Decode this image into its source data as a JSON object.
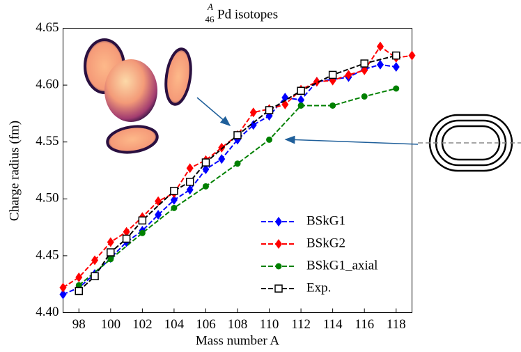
{
  "chart_data": {
    "type": "line",
    "title": "Pd isotopes",
    "title_superscript": "A",
    "title_subscript": "46",
    "xlabel": "Mass number A",
    "ylabel": "Charge radius (fm)",
    "xlim": [
      97,
      119
    ],
    "ylim": [
      4.4,
      4.65
    ],
    "xticks": [
      98,
      100,
      102,
      104,
      106,
      108,
      110,
      112,
      114,
      116,
      118
    ],
    "yticks": [
      {
        "value": 4.4,
        "label": "4.40"
      },
      4.45,
      {
        "value": 4.5,
        "label": "4.50"
      },
      4.55,
      {
        "value": 4.6,
        "label": "4.60"
      },
      4.65
    ],
    "series": [
      {
        "name": "BSkG1",
        "color": "#0000ff",
        "marker": "diamond",
        "x": [
          97,
          98,
          99,
          100,
          101,
          102,
          103,
          104,
          105,
          106,
          107,
          108,
          109,
          110,
          111,
          112,
          113,
          114,
          115,
          116,
          117,
          118
        ],
        "values": [
          4.416,
          4.422,
          4.434,
          4.448,
          4.462,
          4.472,
          4.486,
          4.499,
          4.508,
          4.526,
          4.535,
          4.552,
          4.565,
          4.573,
          4.589,
          4.587,
          4.603,
          4.605,
          4.607,
          4.614,
          4.618,
          4.616
        ]
      },
      {
        "name": "BSkG2",
        "color": "#ff0000",
        "marker": "diamond",
        "x": [
          97,
          98,
          99,
          100,
          101,
          102,
          103,
          104,
          105,
          106,
          107,
          108,
          109,
          110,
          111,
          112,
          113,
          114,
          115,
          116,
          117,
          118,
          119
        ],
        "values": [
          4.422,
          4.431,
          4.446,
          4.462,
          4.471,
          4.484,
          4.498,
          4.505,
          4.527,
          4.534,
          4.545,
          4.556,
          4.576,
          4.579,
          4.583,
          4.596,
          4.603,
          4.604,
          4.609,
          4.613,
          4.634,
          4.624,
          4.626
        ]
      },
      {
        "name": "BSkG1_axial",
        "color": "#008000",
        "marker": "circle",
        "x": [
          98,
          100,
          102,
          104,
          106,
          108,
          110,
          112,
          114,
          116,
          118
        ],
        "values": [
          4.424,
          4.447,
          4.47,
          4.492,
          4.511,
          4.531,
          4.552,
          4.582,
          4.582,
          4.59,
          4.597
        ]
      },
      {
        "name": "Exp.",
        "color": "#000000",
        "marker": "square",
        "x": [
          98,
          99,
          100,
          101,
          102,
          104,
          105,
          106,
          108,
          110,
          112,
          114,
          116,
          118
        ],
        "values": [
          4.419,
          4.432,
          4.453,
          4.465,
          4.481,
          4.507,
          4.515,
          4.532,
          4.556,
          4.578,
          4.595,
          4.609,
          4.619,
          4.626
        ]
      }
    ]
  }
}
